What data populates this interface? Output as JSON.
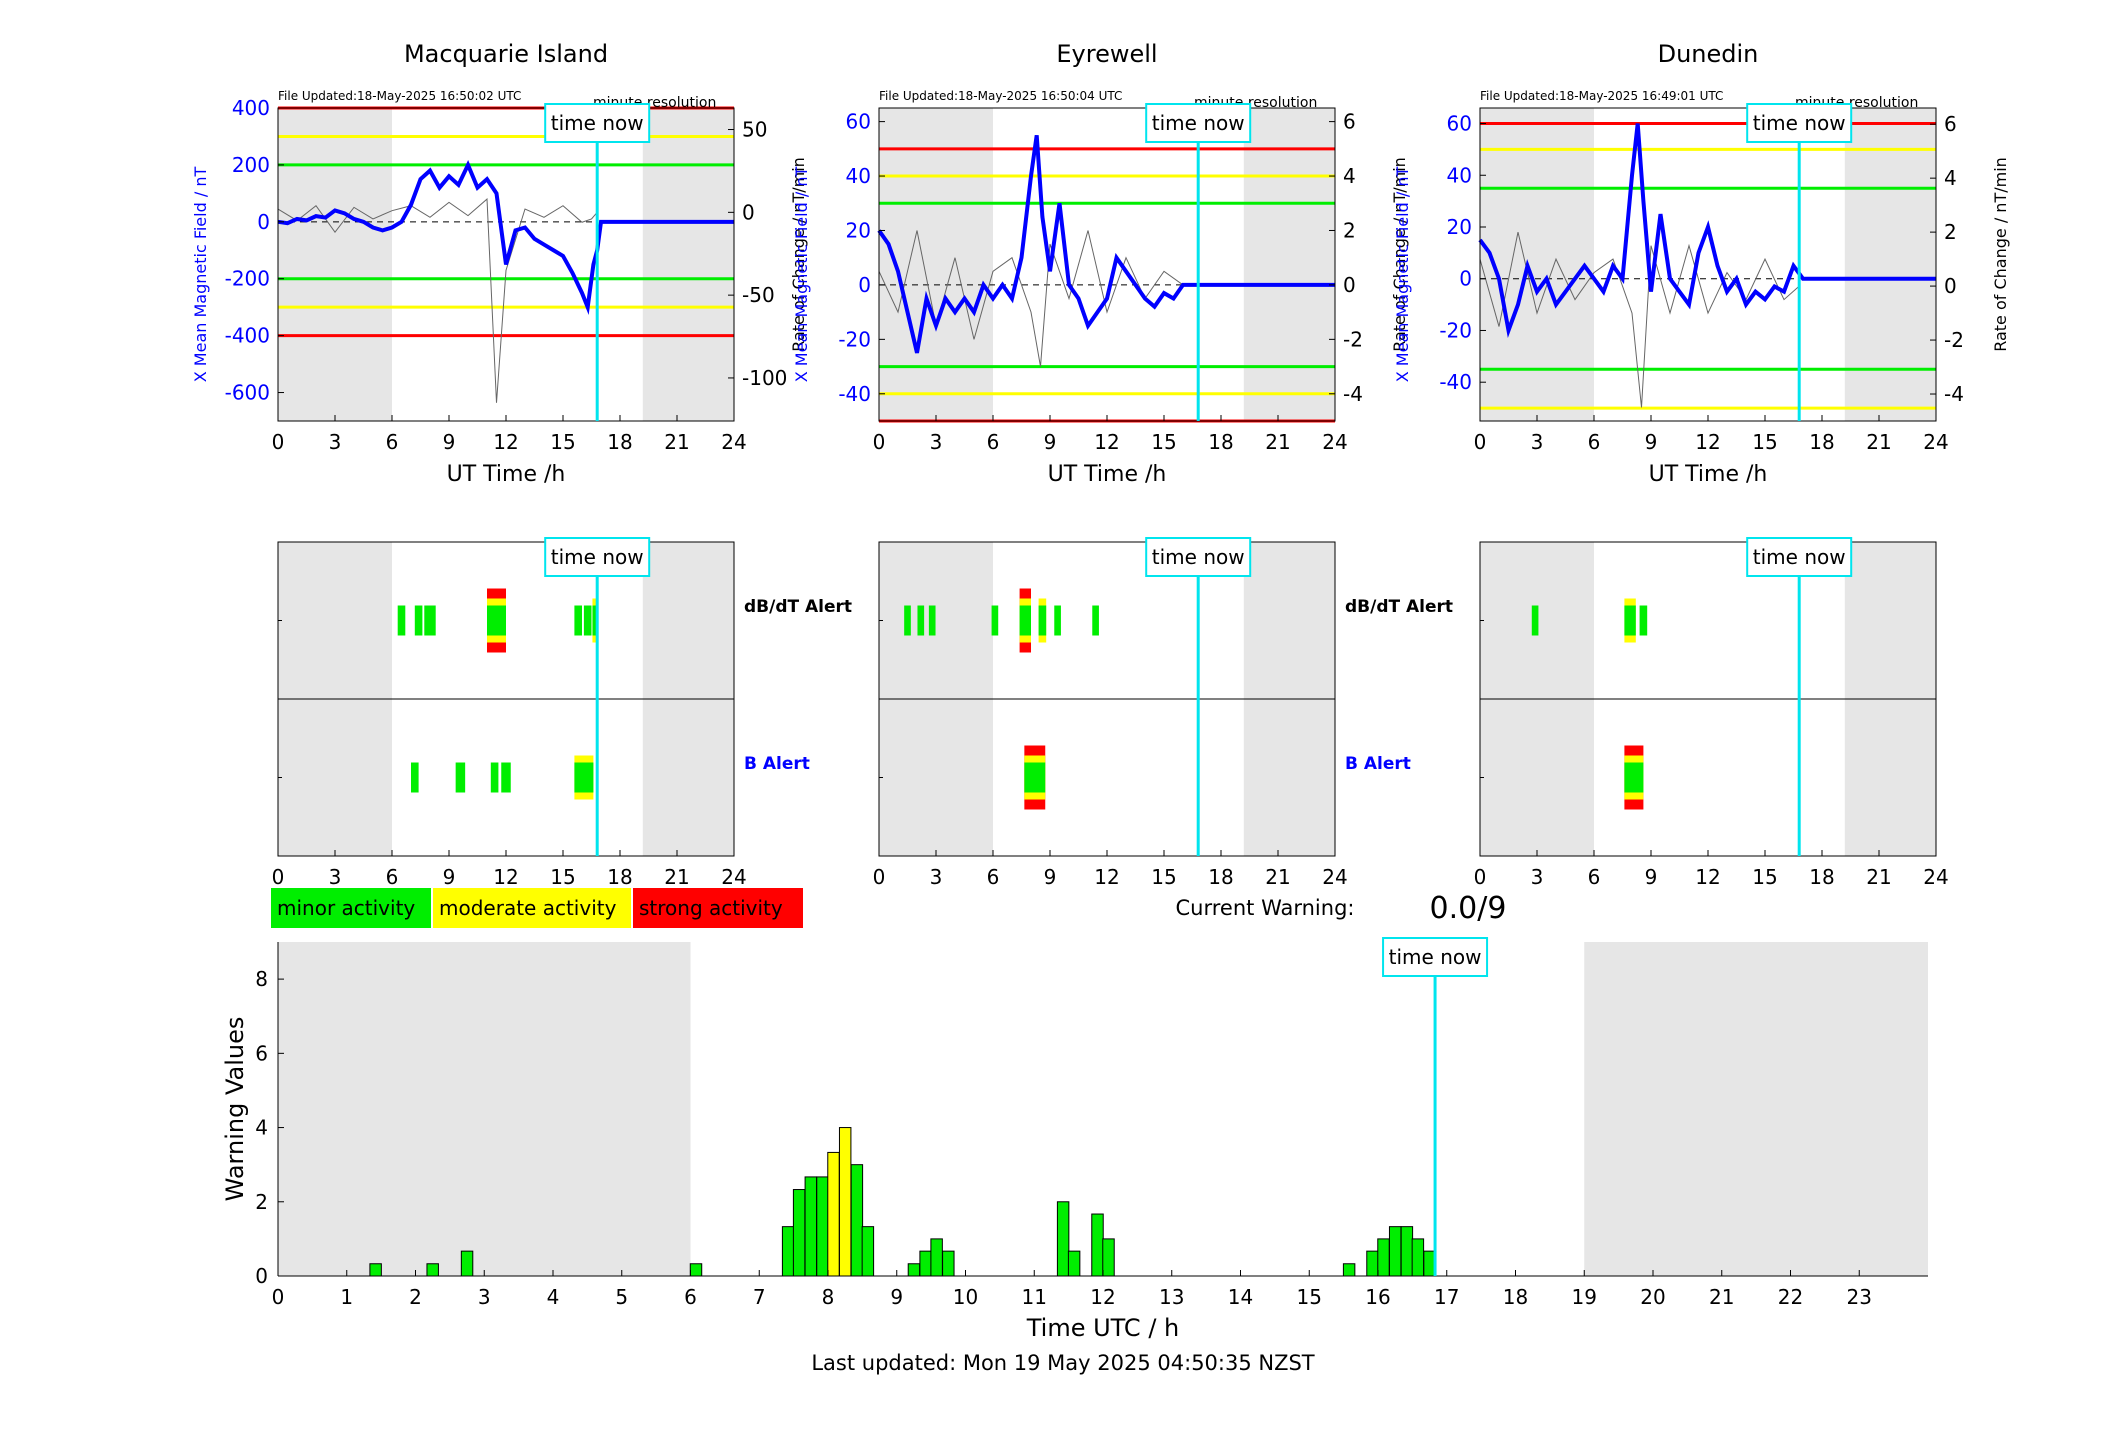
{
  "figure": {
    "last_updated": "Last updated: Mon 19 May 2025 04:50:35 NZST",
    "current_warning_label": "Current Warning:",
    "current_warning_value": "0.0/9",
    "time_now_label": "time now",
    "colors": {
      "minor": "#00ee00",
      "moderate": "#ffff00",
      "strong": "#ff0000",
      "field": "#0000ff",
      "time_now": "#00e5ee",
      "night_shade": "#e6e6e6"
    },
    "legend": [
      {
        "label": "minor activity",
        "level": "minor"
      },
      {
        "label": "moderate activity",
        "level": "moderate"
      },
      {
        "label": "strong activity",
        "level": "strong"
      }
    ]
  },
  "chart_data": [
    {
      "type": "line",
      "title": "Macquarie Island",
      "file_updated": "File Updated:18-May-2025 16:50:02 UTC",
      "resolution_note": "minute resolution",
      "xlabel": "UT Time /h",
      "ylabel": "X Mean Magnetic Field / nT",
      "ylabel_right": "Rate of Change / nT/min",
      "xlim": [
        0,
        24
      ],
      "ylim": [
        -700,
        400
      ],
      "ylim_right": [
        -126,
        63
      ],
      "xticks": [
        0,
        3,
        6,
        9,
        12,
        15,
        18,
        21,
        24
      ],
      "yticks": [
        -600,
        -400,
        -200,
        0,
        200,
        400
      ],
      "yticks_right": [
        -100,
        -50,
        0,
        50
      ],
      "night_shade_hours": [
        [
          0,
          6
        ],
        [
          19.2,
          24
        ]
      ],
      "thresholds": {
        "minor": 200,
        "moderate": 300,
        "strong": 400
      },
      "time_now": 16.8,
      "series": [
        {
          "name": "X Mean Magnetic Field",
          "axis": "left",
          "x": [
            0,
            0.5,
            1,
            1.5,
            2,
            2.5,
            3,
            3.5,
            4,
            4.5,
            5,
            5.5,
            6,
            6.5,
            7,
            7.5,
            8,
            8.5,
            9,
            9.5,
            10,
            10.5,
            11,
            11.5,
            12,
            12.5,
            13,
            13.5,
            14,
            14.5,
            15,
            15.5,
            16,
            16.3,
            16.6,
            16.8,
            17,
            24
          ],
          "y": [
            0,
            -5,
            10,
            5,
            20,
            15,
            40,
            30,
            10,
            0,
            -20,
            -30,
            -20,
            0,
            60,
            150,
            180,
            120,
            160,
            130,
            200,
            120,
            150,
            100,
            -150,
            -30,
            -20,
            -60,
            -80,
            -100,
            -120,
            -180,
            -250,
            -300,
            -150,
            -100,
            0,
            0
          ]
        },
        {
          "name": "Rate of Change",
          "axis": "right",
          "x": [
            0,
            1,
            2,
            3,
            4,
            5,
            6,
            7,
            8,
            9,
            10,
            11,
            11.5,
            12,
            13,
            14,
            15,
            16,
            16.5,
            16.8
          ],
          "y": [
            2,
            -5,
            4,
            -12,
            3,
            -4,
            1,
            4,
            -3,
            6,
            -2,
            8,
            -115,
            -35,
            2,
            -3,
            4,
            -6,
            -4,
            0
          ]
        }
      ]
    },
    {
      "type": "line",
      "title": "Eyrewell",
      "file_updated": "File Updated:18-May-2025 16:50:04 UTC",
      "resolution_note": "minute resolution",
      "xlabel": "UT Time /h",
      "ylabel": "X Mean Magnetic Field / nT",
      "ylabel_right": "Rate of Change / nT/min",
      "xlim": [
        0,
        24
      ],
      "ylim": [
        -50,
        65
      ],
      "ylim_right": [
        -5,
        6.5
      ],
      "xticks": [
        0,
        3,
        6,
        9,
        12,
        15,
        18,
        21,
        24
      ],
      "yticks": [
        -40,
        -20,
        0,
        20,
        40,
        60
      ],
      "yticks_right": [
        -4,
        -2,
        0,
        2,
        4,
        6
      ],
      "night_shade_hours": [
        [
          0,
          6
        ],
        [
          19.2,
          24
        ]
      ],
      "thresholds": {
        "minor": 30,
        "moderate": 40,
        "strong": 50
      },
      "time_now": 16.8,
      "series": [
        {
          "name": "X Mean Magnetic Field",
          "axis": "left",
          "x": [
            0,
            0.5,
            1,
            1.5,
            2,
            2.5,
            3,
            3.5,
            4,
            4.5,
            5,
            5.5,
            6,
            6.5,
            7,
            7.5,
            8,
            8.3,
            8.6,
            9,
            9.5,
            10,
            10.5,
            11,
            11.5,
            12,
            12.5,
            13,
            13.5,
            14,
            14.5,
            15,
            15.5,
            16,
            24
          ],
          "y": [
            20,
            15,
            5,
            -10,
            -25,
            -5,
            -15,
            -5,
            -10,
            -5,
            -10,
            0,
            -5,
            0,
            -5,
            10,
            40,
            55,
            25,
            5,
            30,
            0,
            -5,
            -15,
            -10,
            -5,
            10,
            5,
            0,
            -5,
            -8,
            -3,
            -5,
            0,
            0
          ]
        },
        {
          "name": "Rate of Change",
          "axis": "right",
          "x": [
            0,
            1,
            2,
            3,
            4,
            5,
            6,
            7,
            8,
            8.5,
            9,
            10,
            11,
            12,
            13,
            14,
            15,
            16
          ],
          "y": [
            0.5,
            -1,
            2,
            -1.5,
            1,
            -2,
            0.5,
            1,
            -1,
            -3,
            1.5,
            -0.5,
            2,
            -1,
            1,
            -0.5,
            0.5,
            0
          ]
        }
      ]
    },
    {
      "type": "line",
      "title": "Dunedin",
      "file_updated": "File Updated:18-May-2025 16:49:01 UTC",
      "resolution_note": "minute resolution",
      "xlabel": "UT Time /h",
      "ylabel": "X Mean Magnetic Field / nT",
      "ylabel_right": "Rate of Change / nT/min",
      "xlim": [
        0,
        24
      ],
      "ylim": [
        -55,
        66
      ],
      "ylim_right": [
        -5,
        6.6
      ],
      "xticks": [
        0,
        3,
        6,
        9,
        12,
        15,
        18,
        21,
        24
      ],
      "yticks": [
        -40,
        -20,
        0,
        20,
        40,
        60
      ],
      "yticks_right": [
        -4,
        -2,
        0,
        2,
        4,
        6
      ],
      "night_shade_hours": [
        [
          0,
          6
        ],
        [
          19.2,
          24
        ]
      ],
      "thresholds": {
        "minor": 35,
        "moderate": 50,
        "strong": 60
      },
      "time_now": 16.8,
      "series": [
        {
          "name": "X Mean Magnetic Field",
          "axis": "left",
          "x": [
            0,
            0.5,
            1,
            1.5,
            2,
            2.5,
            3,
            3.5,
            4,
            4.5,
            5,
            5.5,
            6,
            6.5,
            7,
            7.5,
            8,
            8.3,
            8.6,
            9,
            9.5,
            10,
            10.5,
            11,
            11.5,
            12,
            12.5,
            13,
            13.5,
            14,
            14.5,
            15,
            15.5,
            16,
            16.5,
            17,
            24
          ],
          "y": [
            15,
            10,
            0,
            -20,
            -10,
            5,
            -5,
            0,
            -10,
            -5,
            0,
            5,
            0,
            -5,
            5,
            0,
            40,
            60,
            30,
            -5,
            25,
            0,
            -5,
            -10,
            10,
            20,
            5,
            -5,
            0,
            -10,
            -5,
            -8,
            -3,
            -5,
            5,
            0,
            0
          ]
        },
        {
          "name": "Rate of Change",
          "axis": "right",
          "x": [
            0,
            1,
            2,
            3,
            4,
            5,
            6,
            7,
            8,
            8.5,
            9,
            10,
            11,
            12,
            13,
            14,
            15,
            16,
            16.8
          ],
          "y": [
            1,
            -1.5,
            2,
            -1,
            1,
            -0.5,
            0.5,
            1,
            -1,
            -4.5,
            1.5,
            -1,
            1.5,
            -1,
            0.5,
            -0.5,
            1,
            -0.5,
            0
          ]
        }
      ]
    },
    {
      "type": "bar",
      "title": "",
      "xlim": [
        0,
        24
      ],
      "xticks": [
        0,
        3,
        6,
        9,
        12,
        15,
        18,
        21,
        24
      ],
      "night_shade_hours": [
        [
          0,
          6
        ],
        [
          19.2,
          24
        ]
      ],
      "time_now": 16.8,
      "rows": [
        {
          "label": "dB/dT Alert",
          "label_color": "#000000",
          "bars": [
            {
              "x": 6.5,
              "w": 0.4,
              "level": "minor"
            },
            {
              "x": 7.4,
              "w": 0.4,
              "level": "minor"
            },
            {
              "x": 8.0,
              "w": 0.6,
              "level": "minor"
            },
            {
              "x": 11.5,
              "w": 1.0,
              "level": "strong"
            },
            {
              "x": 15.8,
              "w": 0.4,
              "level": "minor"
            },
            {
              "x": 16.3,
              "w": 0.4,
              "level": "minor"
            },
            {
              "x": 16.7,
              "w": 0.3,
              "level": "moderate"
            }
          ]
        },
        {
          "label": "B Alert",
          "label_color": "#0000ff",
          "bars": [
            {
              "x": 7.2,
              "w": 0.4,
              "level": "minor"
            },
            {
              "x": 9.6,
              "w": 0.5,
              "level": "minor"
            },
            {
              "x": 11.4,
              "w": 0.4,
              "level": "minor"
            },
            {
              "x": 12.0,
              "w": 0.5,
              "level": "minor"
            },
            {
              "x": 16.1,
              "w": 1.0,
              "level": "moderate"
            }
          ]
        }
      ]
    },
    {
      "type": "bar",
      "title": "",
      "xlim": [
        0,
        24
      ],
      "xticks": [
        0,
        3,
        6,
        9,
        12,
        15,
        18,
        21,
        24
      ],
      "night_shade_hours": [
        [
          0,
          6
        ],
        [
          19.2,
          24
        ]
      ],
      "time_now": 16.8,
      "rows": [
        {
          "label": "dB/dT Alert",
          "label_color": "#000000",
          "bars": [
            {
              "x": 1.5,
              "w": 0.35,
              "level": "minor"
            },
            {
              "x": 2.2,
              "w": 0.35,
              "level": "minor"
            },
            {
              "x": 2.8,
              "w": 0.35,
              "level": "minor"
            },
            {
              "x": 6.1,
              "w": 0.35,
              "level": "minor"
            },
            {
              "x": 7.7,
              "w": 0.6,
              "level": "strong"
            },
            {
              "x": 8.6,
              "w": 0.4,
              "level": "moderate"
            },
            {
              "x": 9.4,
              "w": 0.35,
              "level": "minor"
            },
            {
              "x": 11.4,
              "w": 0.35,
              "level": "minor"
            }
          ]
        },
        {
          "label": "B Alert",
          "label_color": "#0000ff",
          "bars": [
            {
              "x": 8.2,
              "w": 1.1,
              "level": "strong"
            }
          ]
        }
      ]
    },
    {
      "type": "bar",
      "title": "",
      "xlim": [
        0,
        24
      ],
      "xticks": [
        0,
        3,
        6,
        9,
        12,
        15,
        18,
        21,
        24
      ],
      "night_shade_hours": [
        [
          0,
          6
        ],
        [
          19.2,
          24
        ]
      ],
      "time_now": 16.8,
      "rows": [
        {
          "label": "",
          "label_color": "#000000",
          "bars": [
            {
              "x": 2.9,
              "w": 0.35,
              "level": "minor"
            },
            {
              "x": 7.9,
              "w": 0.6,
              "level": "moderate"
            },
            {
              "x": 8.6,
              "w": 0.4,
              "level": "minor"
            }
          ]
        },
        {
          "label": "",
          "label_color": "#0000ff",
          "bars": [
            {
              "x": 8.1,
              "w": 1.0,
              "level": "strong"
            }
          ]
        }
      ]
    },
    {
      "type": "bar",
      "title": "",
      "xlabel": "Time UTC / h",
      "ylabel": "Warning Values",
      "xlim": [
        0,
        24
      ],
      "ylim": [
        0,
        9
      ],
      "xticks": [
        0,
        1,
        2,
        3,
        4,
        5,
        6,
        7,
        8,
        9,
        10,
        11,
        12,
        13,
        14,
        15,
        16,
        17,
        18,
        19,
        20,
        21,
        22,
        23
      ],
      "yticks": [
        0,
        2,
        4,
        6,
        8
      ],
      "night_shade_hours": [
        [
          0,
          6
        ],
        [
          19,
          24
        ]
      ],
      "time_now": 16.83,
      "bar_width": 0.1667,
      "bars": [
        {
          "x": 1.42,
          "v": 0.33,
          "level": "minor"
        },
        {
          "x": 2.25,
          "v": 0.33,
          "level": "minor"
        },
        {
          "x": 2.75,
          "v": 0.67,
          "level": "minor"
        },
        {
          "x": 6.08,
          "v": 0.33,
          "level": "minor"
        },
        {
          "x": 7.42,
          "v": 1.33,
          "level": "minor"
        },
        {
          "x": 7.58,
          "v": 2.33,
          "level": "minor"
        },
        {
          "x": 7.75,
          "v": 2.67,
          "level": "minor"
        },
        {
          "x": 7.92,
          "v": 2.67,
          "level": "minor"
        },
        {
          "x": 8.08,
          "v": 3.33,
          "level": "moderate"
        },
        {
          "x": 8.25,
          "v": 4.0,
          "level": "moderate"
        },
        {
          "x": 8.42,
          "v": 3.0,
          "level": "minor"
        },
        {
          "x": 8.58,
          "v": 1.33,
          "level": "minor"
        },
        {
          "x": 9.25,
          "v": 0.33,
          "level": "minor"
        },
        {
          "x": 9.42,
          "v": 0.67,
          "level": "minor"
        },
        {
          "x": 9.58,
          "v": 1.0,
          "level": "minor"
        },
        {
          "x": 9.75,
          "v": 0.67,
          "level": "minor"
        },
        {
          "x": 11.42,
          "v": 2.0,
          "level": "minor"
        },
        {
          "x": 11.58,
          "v": 0.67,
          "level": "minor"
        },
        {
          "x": 11.92,
          "v": 1.67,
          "level": "minor"
        },
        {
          "x": 12.08,
          "v": 1.0,
          "level": "minor"
        },
        {
          "x": 15.58,
          "v": 0.33,
          "level": "minor"
        },
        {
          "x": 15.92,
          "v": 0.67,
          "level": "minor"
        },
        {
          "x": 16.08,
          "v": 1.0,
          "level": "minor"
        },
        {
          "x": 16.25,
          "v": 1.33,
          "level": "minor"
        },
        {
          "x": 16.42,
          "v": 1.33,
          "level": "minor"
        },
        {
          "x": 16.58,
          "v": 1.0,
          "level": "minor"
        },
        {
          "x": 16.75,
          "v": 0.67,
          "level": "minor"
        }
      ]
    }
  ]
}
